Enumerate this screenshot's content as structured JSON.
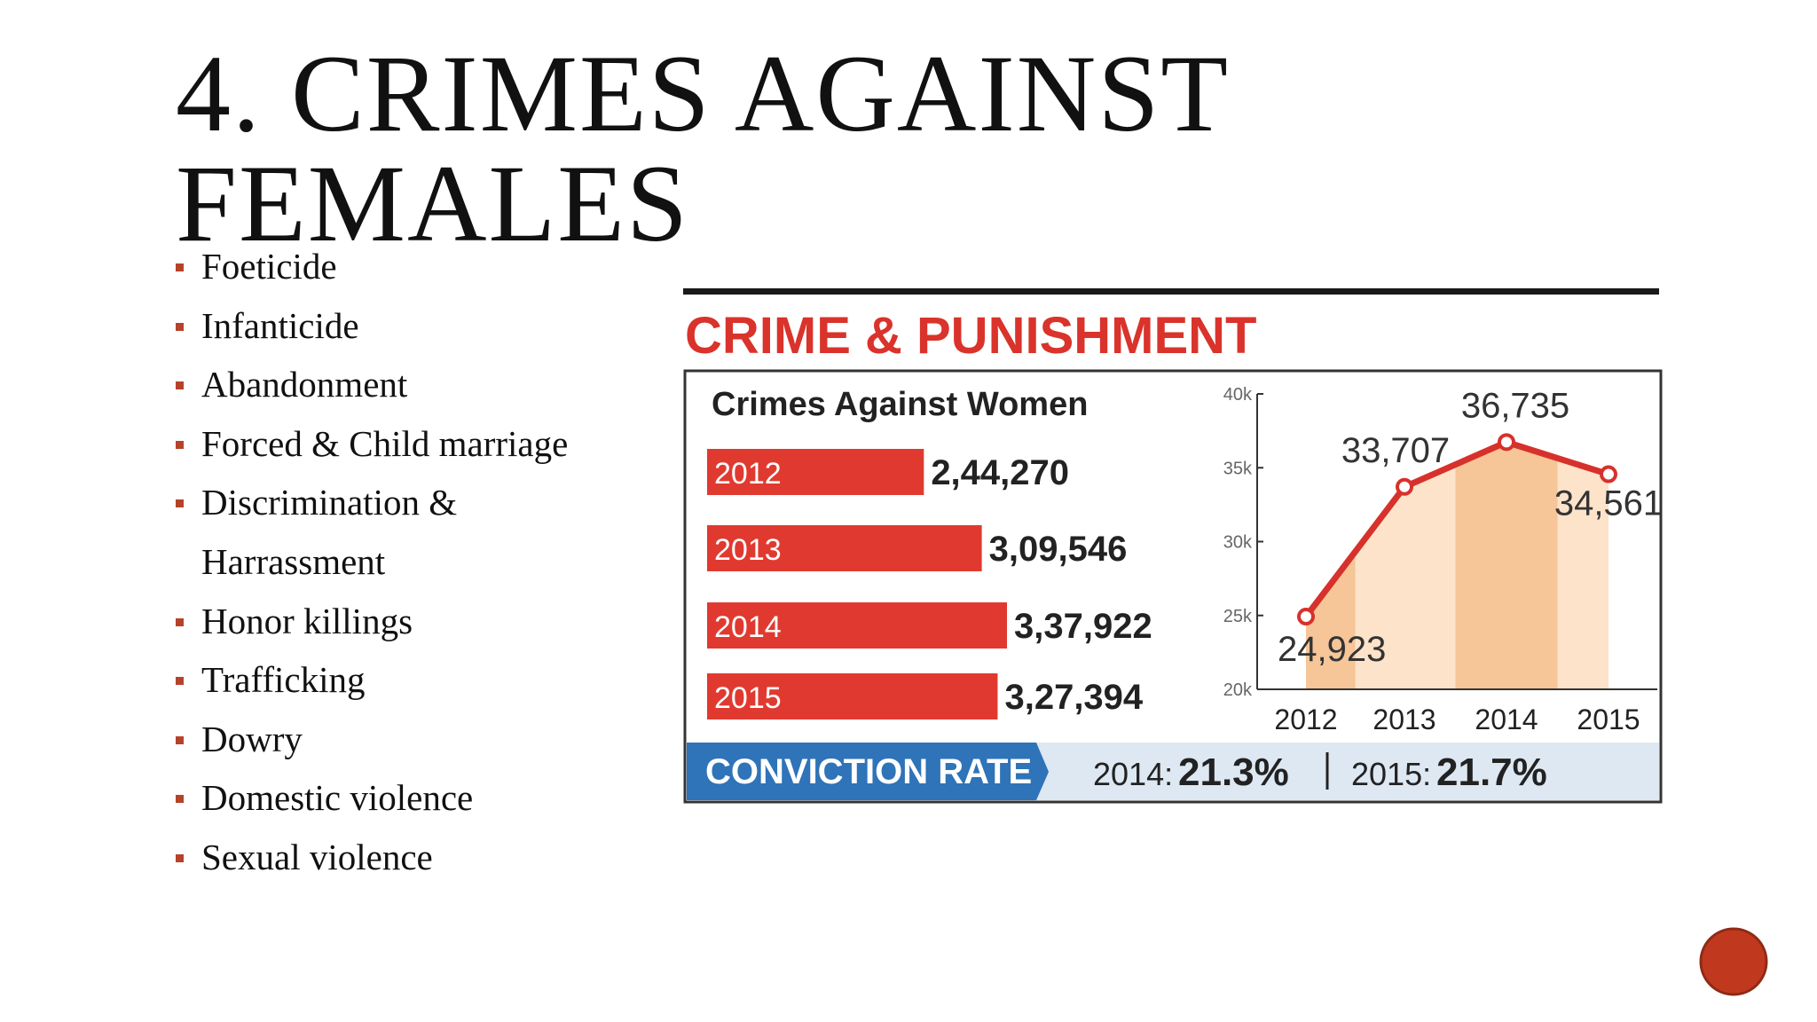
{
  "header": {
    "title": "4. CRIMES AGAINST FEMALES"
  },
  "bullets": [
    "Foeticide",
    "Infanticide",
    "Abandonment",
    "Forced & Child marriage",
    "Discrimination & Harrassment",
    "Honor killings",
    "Trafficking",
    "Dowry",
    "Domestic violence",
    "Sexual violence"
  ],
  "infographic": {
    "title": "CRIME & PUNISHMENT",
    "conviction": {
      "label": "CONVICTION RATE",
      "items": [
        {
          "year": "2014:",
          "rate": "21.3%"
        },
        {
          "year": "2015:",
          "rate": "21.7%"
        }
      ]
    }
  },
  "chart_data": [
    {
      "type": "hbar",
      "title": "Crimes Against Women",
      "categories": [
        "2012",
        "2013",
        "2014",
        "2015"
      ],
      "values": [
        244270,
        309546,
        337922,
        327394
      ],
      "value_labels": [
        "2,44,270",
        "3,09,546",
        "3,37,922",
        "3,27,394"
      ],
      "color": "#e03a30"
    },
    {
      "type": "line",
      "categories": [
        "2012",
        "2013",
        "2014",
        "2015"
      ],
      "values": [
        24923,
        33707,
        36735,
        34561
      ],
      "value_labels": [
        "24,923",
        "33,707",
        "36,735",
        "34,561"
      ],
      "color": "#d7312c",
      "ylim": [
        20000,
        40000
      ],
      "yticks": [
        {
          "value": 20000,
          "label": "20k"
        },
        {
          "value": 25000,
          "label": "25k"
        },
        {
          "value": 30000,
          "label": "30k"
        },
        {
          "value": 35000,
          "label": "35k"
        },
        {
          "value": 40000,
          "label": "40k"
        }
      ]
    }
  ]
}
